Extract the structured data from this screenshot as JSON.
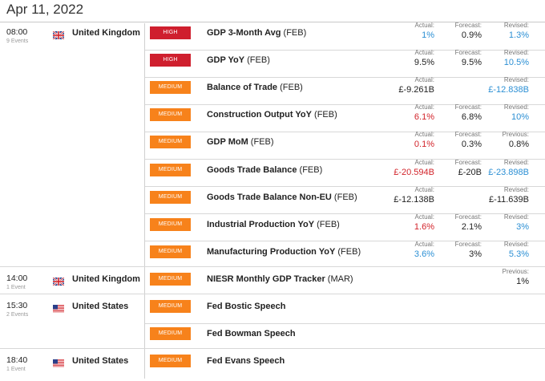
{
  "date": "Apr 11, 2022",
  "groups": [
    {
      "time": "08:00",
      "events_count": "9 Events",
      "country": "United Kingdom",
      "flag": "uk-flag"
    },
    {
      "time": "14:00",
      "events_count": "1 Event",
      "country": "United Kingdom",
      "flag": "uk-flag"
    },
    {
      "time": "15:30",
      "events_count": "2 Events",
      "country": "United States",
      "flag": "us-flag"
    },
    {
      "time": "18:40",
      "events_count": "1 Event",
      "country": "United States",
      "flag": "us-flag"
    }
  ],
  "rows": [
    {
      "importance": "HIGH",
      "name": "GDP 3-Month Avg",
      "period": "(FEB)",
      "c1": {
        "label": "Actual:",
        "value": "1%",
        "color": "blue"
      },
      "c2": {
        "label": "Forecast:",
        "value": "0.9%",
        "color": "black"
      },
      "c3": {
        "label": "Revised:",
        "value": "1.3%",
        "color": "blue"
      }
    },
    {
      "importance": "HIGH",
      "name": "GDP YoY",
      "period": "(FEB)",
      "c1": {
        "label": "Actual:",
        "value": "9.5%",
        "color": "black"
      },
      "c2": {
        "label": "Forecast:",
        "value": "9.5%",
        "color": "black"
      },
      "c3": {
        "label": "Revised:",
        "value": "10.5%",
        "color": "blue"
      }
    },
    {
      "importance": "MEDIUM",
      "name": "Balance of Trade",
      "period": "(FEB)",
      "c1": {
        "label": "Actual:",
        "value": "£-9.261B",
        "color": "black"
      },
      "c2": null,
      "c3": {
        "label": "Revised:",
        "value": "£-12.838B",
        "color": "blue"
      }
    },
    {
      "importance": "MEDIUM",
      "name": "Construction Output YoY",
      "period": "(FEB)",
      "c1": {
        "label": "Actual:",
        "value": "6.1%",
        "color": "red"
      },
      "c2": {
        "label": "Forecast:",
        "value": "6.8%",
        "color": "black"
      },
      "c3": {
        "label": "Revised:",
        "value": "10%",
        "color": "blue"
      }
    },
    {
      "importance": "MEDIUM",
      "name": "GDP MoM",
      "period": "(FEB)",
      "c1": {
        "label": "Actual:",
        "value": "0.1%",
        "color": "red"
      },
      "c2": {
        "label": "Forecast:",
        "value": "0.3%",
        "color": "black"
      },
      "c3": {
        "label": "Previous:",
        "value": "0.8%",
        "color": "black"
      }
    },
    {
      "importance": "MEDIUM",
      "name": "Goods Trade Balance",
      "period": "(FEB)",
      "c1": {
        "label": "Actual:",
        "value": "£-20.594B",
        "color": "red"
      },
      "c2": {
        "label": "Forecast:",
        "value": "£-20B",
        "color": "black"
      },
      "c3": {
        "label": "Revised:",
        "value": "£-23.898B",
        "color": "blue"
      }
    },
    {
      "importance": "MEDIUM",
      "name": "Goods Trade Balance Non-EU",
      "period": "(FEB)",
      "c1": {
        "label": "Actual:",
        "value": "£-12.138B",
        "color": "black"
      },
      "c2": null,
      "c3": {
        "label": "Revised:",
        "value": "£-11.639B",
        "color": "black"
      }
    },
    {
      "importance": "MEDIUM",
      "name": "Industrial Production YoY",
      "period": "(FEB)",
      "c1": {
        "label": "Actual:",
        "value": "1.6%",
        "color": "red"
      },
      "c2": {
        "label": "Forecast:",
        "value": "2.1%",
        "color": "black"
      },
      "c3": {
        "label": "Revised:",
        "value": "3%",
        "color": "blue"
      }
    },
    {
      "importance": "MEDIUM",
      "name": "Manufacturing Production YoY",
      "period": "(FEB)",
      "c1": {
        "label": "Actual:",
        "value": "3.6%",
        "color": "blue"
      },
      "c2": {
        "label": "Forecast:",
        "value": "3%",
        "color": "black"
      },
      "c3": {
        "label": "Revised:",
        "value": "5.3%",
        "color": "blue"
      }
    },
    {
      "importance": "MEDIUM",
      "name": "NIESR Monthly GDP Tracker",
      "period": "(MAR)",
      "c1": null,
      "c2": null,
      "c3": {
        "label": "Previous:",
        "value": "1%",
        "color": "black"
      }
    },
    {
      "importance": "MEDIUM",
      "name": "Fed Bostic Speech",
      "period": "",
      "c1": null,
      "c2": null,
      "c3": null
    },
    {
      "importance": "MEDIUM",
      "name": "Fed Bowman Speech",
      "period": "",
      "c1": null,
      "c2": null,
      "c3": null
    },
    {
      "importance": "MEDIUM",
      "name": "Fed Evans Speech",
      "period": "",
      "c1": null,
      "c2": null,
      "c3": null
    }
  ],
  "colors": {
    "high": "#cf1f2e",
    "medium": "#f7821b",
    "blue": "#2b8fd4",
    "red": "#d2232a"
  }
}
